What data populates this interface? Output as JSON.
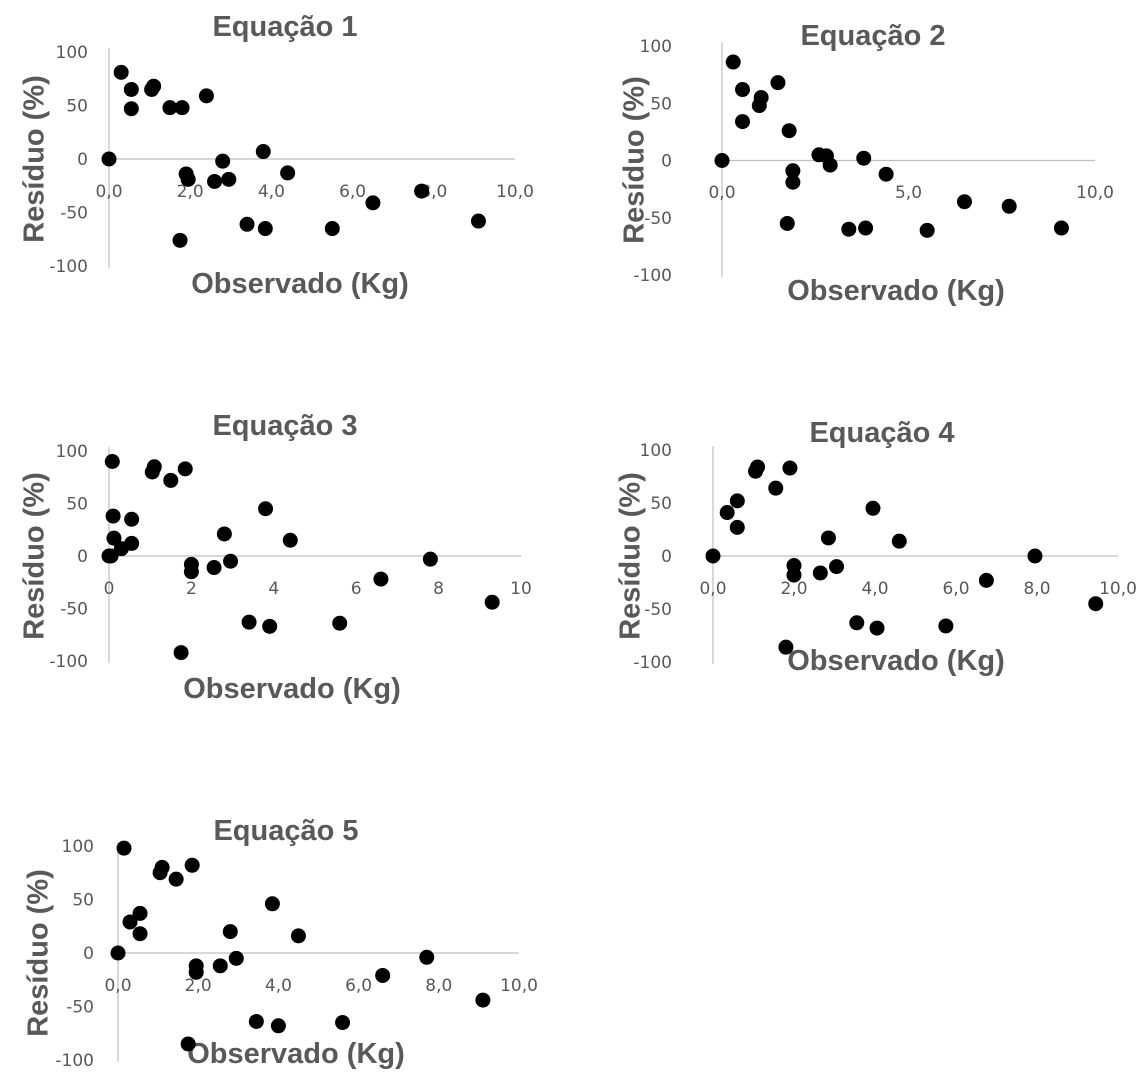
{
  "chart_data": [
    {
      "type": "scatter",
      "title": "Equação 1",
      "xlabel": "Observado (Kg)",
      "ylabel": "Resíduo (%)",
      "xlim": [
        0,
        10
      ],
      "ylim": [
        -100,
        100
      ],
      "xticks": [
        "0,0",
        "2,0",
        "4,0",
        "6,0",
        "8,0",
        "10,0"
      ],
      "yticks": [
        "100",
        "50",
        "0",
        "-50",
        "-100"
      ],
      "grid": false,
      "points": [
        [
          0.0,
          0
        ],
        [
          0.3,
          81
        ],
        [
          0.55,
          65
        ],
        [
          0.55,
          47
        ],
        [
          1.05,
          65
        ],
        [
          1.1,
          68
        ],
        [
          1.5,
          48
        ],
        [
          1.8,
          48
        ],
        [
          1.9,
          -14
        ],
        [
          1.95,
          -19
        ],
        [
          2.4,
          59
        ],
        [
          2.6,
          -21
        ],
        [
          2.8,
          -2
        ],
        [
          2.95,
          -19
        ],
        [
          1.75,
          -76
        ],
        [
          3.4,
          -61
        ],
        [
          3.8,
          7
        ],
        [
          3.85,
          -65
        ],
        [
          4.4,
          -13
        ],
        [
          5.5,
          -65
        ],
        [
          6.5,
          -41
        ],
        [
          7.7,
          -30
        ],
        [
          9.1,
          -58
        ]
      ]
    },
    {
      "type": "scatter",
      "title": "Equação 2",
      "xlabel": "Observado (Kg)",
      "ylabel": "Resíduo (%)",
      "xlim": [
        0,
        10
      ],
      "ylim": [
        -100,
        100
      ],
      "xticks": [
        "0,0",
        "5,0",
        "10,0"
      ],
      "yticks": [
        "100",
        "50",
        "0",
        "-50",
        "-100"
      ],
      "grid": false,
      "points": [
        [
          0.0,
          0
        ],
        [
          0.3,
          86
        ],
        [
          0.55,
          62
        ],
        [
          0.55,
          34
        ],
        [
          1.05,
          55
        ],
        [
          1.0,
          48
        ],
        [
          1.5,
          68
        ],
        [
          1.8,
          26
        ],
        [
          1.75,
          -55
        ],
        [
          1.9,
          -9
        ],
        [
          1.9,
          -19
        ],
        [
          2.6,
          5
        ],
        [
          2.8,
          4
        ],
        [
          2.9,
          -4
        ],
        [
          3.4,
          -60
        ],
        [
          3.8,
          2
        ],
        [
          3.85,
          -59
        ],
        [
          4.4,
          -12
        ],
        [
          5.5,
          -61
        ],
        [
          6.5,
          -36
        ],
        [
          7.7,
          -40
        ],
        [
          9.1,
          -59
        ]
      ]
    },
    {
      "type": "scatter",
      "title": "Equação 3",
      "xlabel": "Observado (Kg)",
      "ylabel": "Resíduo (%)",
      "xlim": [
        0,
        10
      ],
      "ylim": [
        -100,
        100
      ],
      "xticks": [
        "0",
        "2",
        "4",
        "6",
        "8",
        "10"
      ],
      "yticks": [
        "100",
        "50",
        "0",
        "-50",
        "-100"
      ],
      "grid": false,
      "points": [
        [
          0.0,
          0
        ],
        [
          0.05,
          0
        ],
        [
          0.08,
          90
        ],
        [
          0.1,
          38
        ],
        [
          0.12,
          17
        ],
        [
          0.3,
          7
        ],
        [
          0.55,
          35
        ],
        [
          0.55,
          12
        ],
        [
          1.05,
          80
        ],
        [
          1.1,
          85
        ],
        [
          1.5,
          72
        ],
        [
          1.85,
          83
        ],
        [
          1.75,
          -92
        ],
        [
          2.0,
          -8
        ],
        [
          2.0,
          -15
        ],
        [
          2.55,
          -11
        ],
        [
          2.8,
          21
        ],
        [
          2.95,
          -5
        ],
        [
          3.4,
          -63
        ],
        [
          3.8,
          45
        ],
        [
          3.9,
          -67
        ],
        [
          4.4,
          15
        ],
        [
          5.6,
          -64
        ],
        [
          6.6,
          -22
        ],
        [
          7.8,
          -3
        ],
        [
          9.3,
          -44
        ]
      ]
    },
    {
      "type": "scatter",
      "title": "Equação 4",
      "xlabel": "Observado (Kg)",
      "ylabel": "Resíduo (%)",
      "xlim": [
        0,
        10
      ],
      "ylim": [
        -100,
        100
      ],
      "xticks": [
        "0,0",
        "2,0",
        "4,0",
        "6,0",
        "8,0",
        "10,0"
      ],
      "yticks": [
        "100",
        "50",
        "0",
        "-50",
        "-100"
      ],
      "grid": false,
      "points": [
        [
          0.0,
          0
        ],
        [
          0.35,
          41
        ],
        [
          0.6,
          52
        ],
        [
          0.6,
          27
        ],
        [
          1.05,
          80
        ],
        [
          1.1,
          84
        ],
        [
          1.55,
          64
        ],
        [
          1.9,
          83
        ],
        [
          1.8,
          -86
        ],
        [
          2.0,
          -9
        ],
        [
          2.0,
          -18
        ],
        [
          2.65,
          -16
        ],
        [
          2.85,
          17
        ],
        [
          3.05,
          -10
        ],
        [
          3.55,
          -63
        ],
        [
          3.95,
          45
        ],
        [
          4.05,
          -68
        ],
        [
          4.6,
          14
        ],
        [
          5.75,
          -66
        ],
        [
          6.75,
          -23
        ],
        [
          7.95,
          0
        ],
        [
          9.45,
          -45
        ]
      ]
    },
    {
      "type": "scatter",
      "title": "Equação 5",
      "xlabel": "Observado (Kg)",
      "ylabel": "Resíduo (%)",
      "xlim": [
        0,
        10
      ],
      "ylim": [
        -100,
        100
      ],
      "xticks": [
        "0,0",
        "2,0",
        "4,0",
        "6,0",
        "8,0",
        "10,0"
      ],
      "yticks": [
        "100",
        "50",
        "0",
        "-50",
        "-100"
      ],
      "grid": false,
      "points": [
        [
          0.0,
          0
        ],
        [
          0.15,
          98
        ],
        [
          0.3,
          29
        ],
        [
          0.55,
          37
        ],
        [
          0.55,
          18
        ],
        [
          1.05,
          75
        ],
        [
          1.1,
          80
        ],
        [
          1.45,
          69
        ],
        [
          1.85,
          82
        ],
        [
          1.75,
          -85
        ],
        [
          1.95,
          -12
        ],
        [
          1.95,
          -18
        ],
        [
          2.55,
          -12
        ],
        [
          2.8,
          20
        ],
        [
          2.95,
          -5
        ],
        [
          3.45,
          -64
        ],
        [
          3.85,
          46
        ],
        [
          4.0,
          -68
        ],
        [
          4.5,
          16
        ],
        [
          5.6,
          -65
        ],
        [
          6.6,
          -21
        ],
        [
          7.7,
          -4
        ],
        [
          9.1,
          -44
        ]
      ]
    }
  ]
}
